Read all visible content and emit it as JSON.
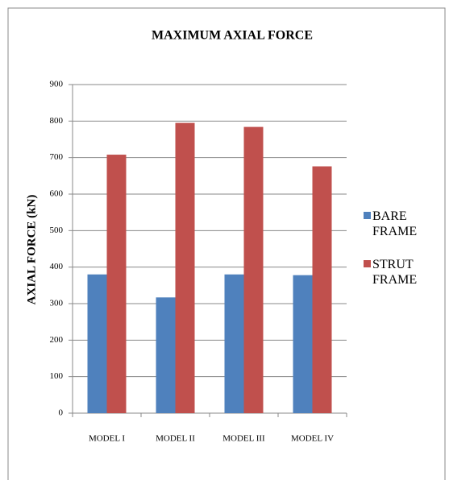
{
  "chart_data": {
    "type": "bar",
    "title": "MAXIMUM AXIAL FORCE",
    "y_label": "AXIAL FORCE (kN)",
    "categories": [
      "MODEL I",
      "MODEL II",
      "MODEL III",
      "MODEL IV"
    ],
    "series": [
      {
        "name": "BARE FRAME",
        "color": "#4f81bd",
        "values": [
          380,
          317,
          380,
          378
        ]
      },
      {
        "name": "STRUT FRAME",
        "color": "#c0504d",
        "values": [
          708,
          795,
          784,
          676
        ]
      }
    ],
    "ylim": [
      0,
      900
    ],
    "yticks": [
      0,
      100,
      200,
      300,
      400,
      500,
      600,
      700,
      800,
      900
    ],
    "grid": true,
    "legend": "right"
  }
}
